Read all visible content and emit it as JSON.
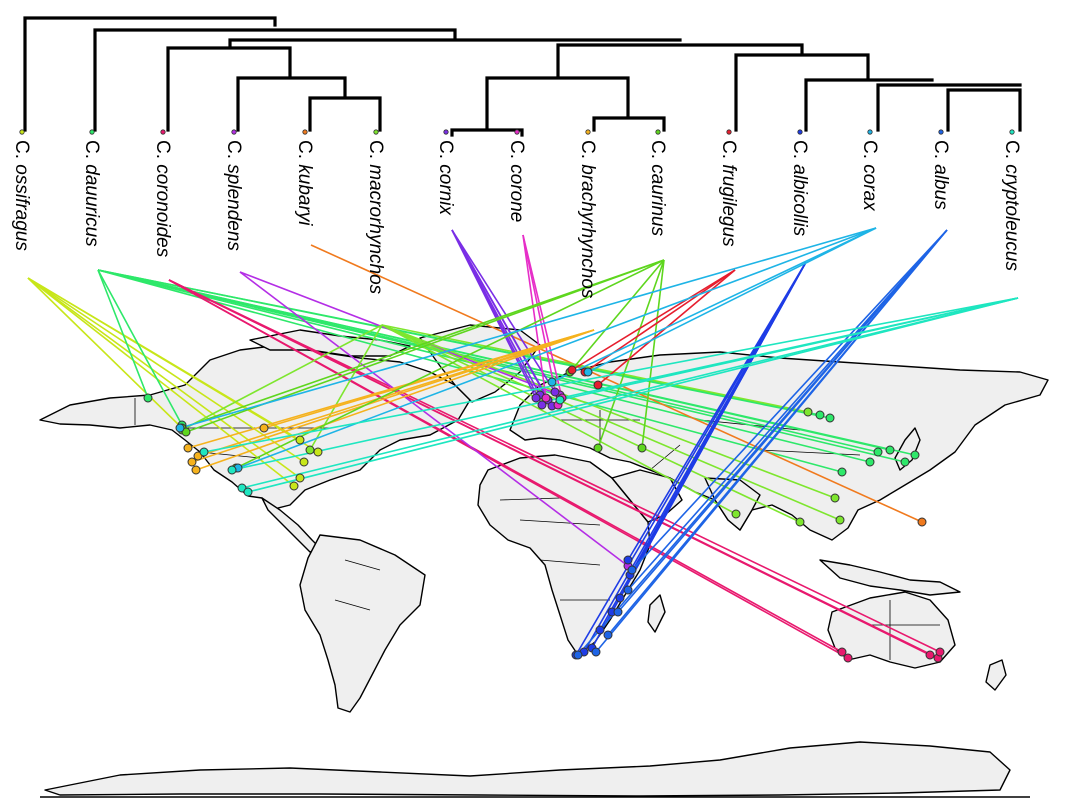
{
  "figure": {
    "genus_abbrev": "C.",
    "tips": [
      {
        "species": "ossifragus",
        "color": "#c8e619"
      },
      {
        "species": "dauuricus",
        "color": "#2ee86a"
      },
      {
        "species": "coronoides",
        "color": "#e8196e"
      },
      {
        "species": "splendens",
        "color": "#b42ee6"
      },
      {
        "species": "kubaryi",
        "color": "#f07a1e"
      },
      {
        "species": "macrorhynchos",
        "color": "#7ee62e"
      },
      {
        "species": "cornix",
        "color": "#7a2ee6"
      },
      {
        "species": "corone",
        "color": "#e62ec8"
      },
      {
        "species": "brachyrhynchos",
        "color": "#f5b21e"
      },
      {
        "species": "caurinus",
        "color": "#5ed61e"
      },
      {
        "species": "frugilegus",
        "color": "#e61e2e"
      },
      {
        "species": "albicollis",
        "color": "#1e3ce6"
      },
      {
        "species": "corax",
        "color": "#1eb4e6"
      },
      {
        "species": "albus",
        "color": "#1e64e6"
      },
      {
        "species": "cryptoleucus",
        "color": "#1ee6c0"
      }
    ]
  }
}
